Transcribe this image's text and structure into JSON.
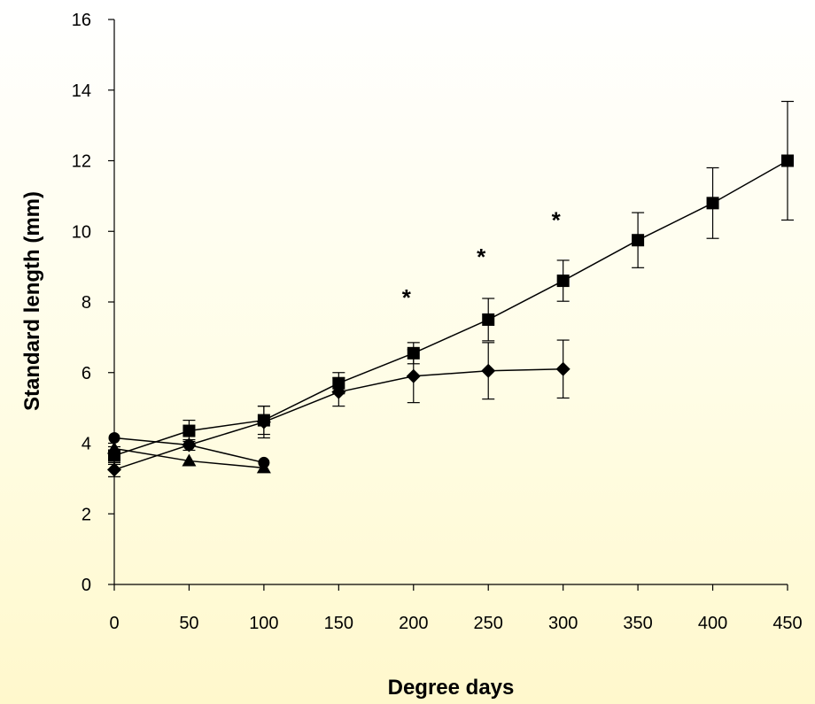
{
  "chart_data": {
    "type": "line",
    "title": "",
    "xlabel": "Degree days",
    "ylabel": "Standard length (mm)",
    "xlim": [
      0,
      450
    ],
    "ylim": [
      0,
      16
    ],
    "xticks": [
      0,
      50,
      100,
      150,
      200,
      250,
      300,
      350,
      400,
      450
    ],
    "yticks": [
      0,
      2,
      4,
      6,
      8,
      10,
      12,
      14,
      16
    ],
    "xtick_labels": [
      "0",
      "50",
      "100",
      "150",
      "200",
      "250",
      "300",
      "350",
      "400",
      "450"
    ],
    "ytick_labels": [
      "0",
      "2",
      "4",
      "6",
      "8",
      "10",
      "12",
      "14",
      "16"
    ],
    "grid": false,
    "legend": "none",
    "series": [
      {
        "marker": "square",
        "x": [
          0,
          50,
          100,
          150,
          200,
          250,
          300,
          350,
          400,
          450
        ],
        "y": [
          3.65,
          4.35,
          4.65,
          5.7,
          6.55,
          7.5,
          8.6,
          9.75,
          10.8,
          12.0
        ],
        "err": [
          0.25,
          0.3,
          0.4,
          0.3,
          0.3,
          0.6,
          0.58,
          0.78,
          1.0,
          1.68
        ],
        "color": "#000000"
      },
      {
        "marker": "diamond",
        "x": [
          0,
          50,
          100,
          150,
          200,
          250,
          300
        ],
        "y": [
          3.25,
          3.95,
          4.6,
          5.45,
          5.9,
          6.05,
          6.1
        ],
        "err": [
          0.2,
          0.15,
          0.45,
          0.4,
          0.75,
          0.8,
          0.82
        ],
        "color": "#000000"
      },
      {
        "marker": "circle",
        "x": [
          0,
          50,
          100
        ],
        "y": [
          4.15,
          3.95,
          3.45
        ],
        "err": [
          0,
          0,
          0
        ],
        "color": "#000000"
      },
      {
        "marker": "triangle",
        "x": [
          0,
          50,
          100
        ],
        "y": [
          3.85,
          3.5,
          3.3
        ],
        "err": [
          0,
          0,
          0
        ],
        "color": "#000000"
      }
    ],
    "annotations": [
      {
        "text": "*",
        "x": 200,
        "y": 8.25
      },
      {
        "text": "*",
        "x": 250,
        "y": 9.4
      },
      {
        "text": "*",
        "x": 300,
        "y": 10.45
      }
    ]
  }
}
